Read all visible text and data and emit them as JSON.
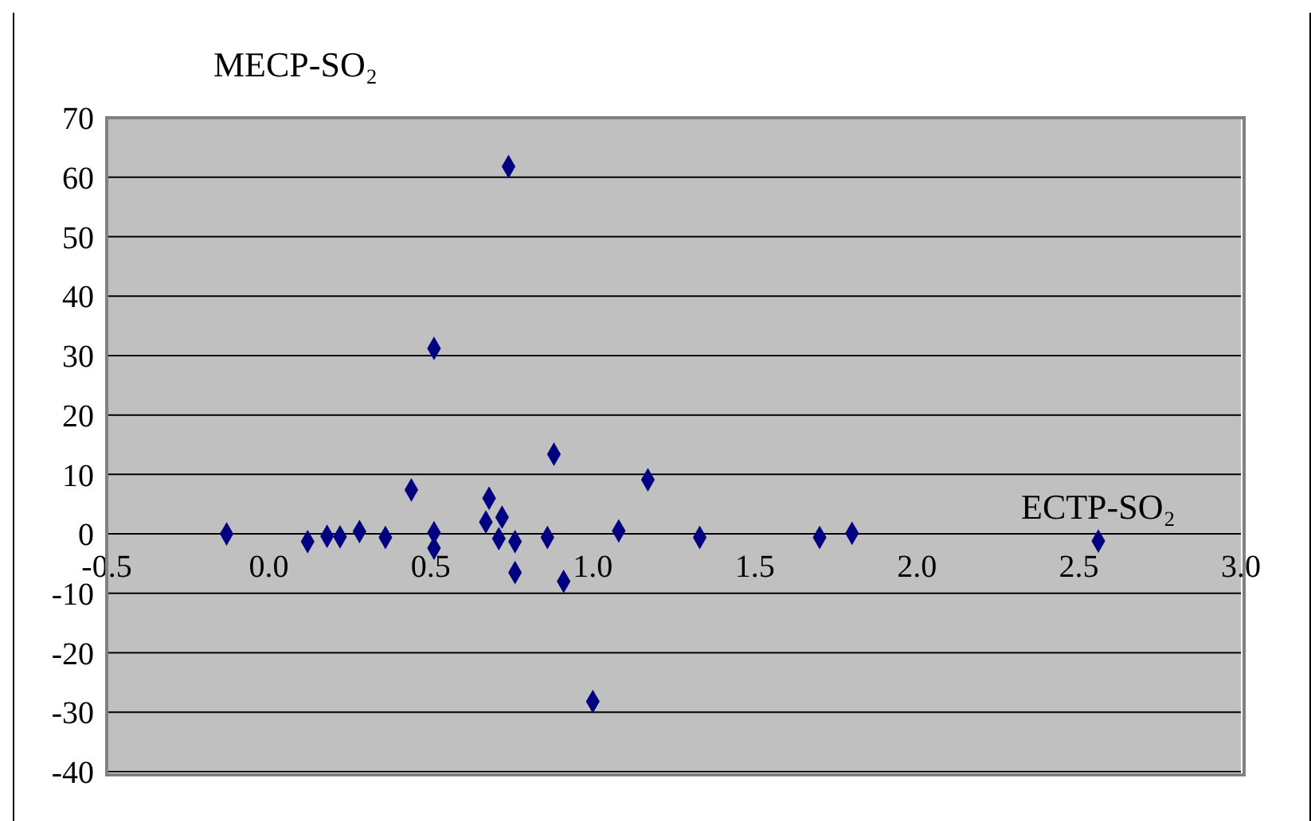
{
  "chart_data": {
    "type": "scatter",
    "xlabel": "ECTP-SO₂",
    "ylabel": "MECP-SO₂",
    "x": [
      -0.13,
      0.12,
      0.18,
      0.22,
      0.28,
      0.36,
      0.44,
      0.51,
      0.51,
      0.51,
      0.68,
      0.67,
      0.72,
      0.71,
      0.74,
      0.76,
      0.76,
      0.86,
      0.88,
      0.91,
      1.0,
      1.08,
      1.17,
      1.33,
      1.7,
      1.8,
      2.56
    ],
    "series": [
      {
        "color": "#000080",
        "values": [
          0,
          -1.3,
          -0.4,
          -0.5,
          0.4,
          -0.6,
          7.4,
          31.2,
          0.2,
          -2.4,
          6.0,
          2.0,
          2.8,
          -0.8,
          61.8,
          -1.3,
          -6.5,
          -0.6,
          13.4,
          -8.0,
          -28.2,
          0.5,
          9.1,
          -0.6,
          -0.6,
          0.1,
          -1.2
        ]
      }
    ],
    "xlim": [
      -0.5,
      3.0
    ],
    "xticks": [
      {
        "value": -0.5,
        "label": "-0.5"
      },
      {
        "value": 0,
        "label": "0.0"
      },
      {
        "value": 0.5,
        "label": "0.5"
      },
      {
        "value": 1,
        "label": "1.0"
      },
      {
        "value": 1.5,
        "label": "1.5"
      },
      {
        "value": 2,
        "label": "2.0"
      },
      {
        "value": 2.5,
        "label": "2.5"
      },
      {
        "value": 3,
        "label": "3.0"
      }
    ],
    "ylim": [
      -40,
      70
    ],
    "yticks": [
      -40,
      -30,
      -20,
      -10,
      0,
      10,
      20,
      30,
      40,
      50,
      60,
      70
    ],
    "grid": "y",
    "legend": false,
    "marker": "diamond"
  }
}
